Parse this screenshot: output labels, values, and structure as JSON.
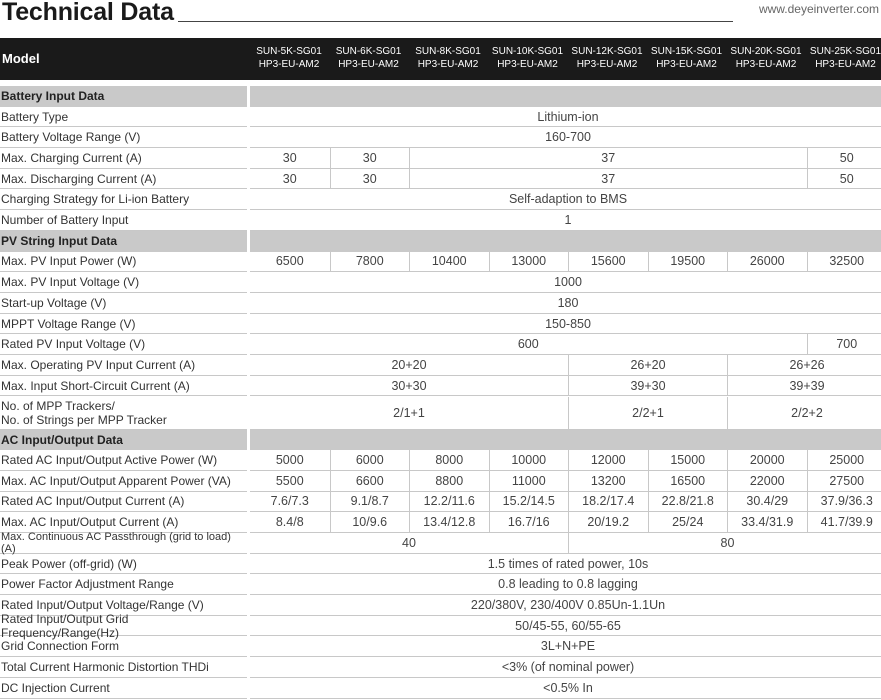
{
  "header": {
    "title": "Technical Data",
    "url": "www.deyeinverter.com",
    "model_label": "Model",
    "models": [
      [
        "SUN-5K-SG01",
        "HP3-EU-AM2"
      ],
      [
        "SUN-6K-SG01",
        "HP3-EU-AM2"
      ],
      [
        "SUN-8K-SG01",
        "HP3-EU-AM2"
      ],
      [
        "SUN-10K-SG01",
        "HP3-EU-AM2"
      ],
      [
        "SUN-12K-SG01",
        "HP3-EU-AM2"
      ],
      [
        "SUN-15K-SG01",
        "HP3-EU-AM2"
      ],
      [
        "SUN-20K-SG01",
        "HP3-EU-AM2"
      ],
      [
        "SUN-25K-SG01",
        "HP3-EU-AM2"
      ]
    ]
  },
  "rows": [
    {
      "type": "section",
      "label": "Battery Input Data"
    },
    {
      "label": "Battery Type",
      "cells": [
        {
          "v": "Lithium-ion",
          "span": 8
        }
      ]
    },
    {
      "label": "Battery Voltage Range (V)",
      "cells": [
        {
          "v": "160-700",
          "span": 8
        }
      ]
    },
    {
      "label": "Max. Charging Current (A)",
      "cells": [
        {
          "v": "30",
          "span": 1
        },
        {
          "v": "30",
          "span": 1
        },
        {
          "v": "37",
          "span": 5
        },
        {
          "v": "50",
          "span": 1
        }
      ]
    },
    {
      "label": "Max. Discharging Current (A)",
      "cells": [
        {
          "v": "30",
          "span": 1
        },
        {
          "v": "30",
          "span": 1
        },
        {
          "v": "37",
          "span": 5
        },
        {
          "v": "50",
          "span": 1
        }
      ]
    },
    {
      "label": "Charging Strategy for Li-ion Battery",
      "cells": [
        {
          "v": "Self-adaption to BMS",
          "span": 8
        }
      ]
    },
    {
      "label": "Number of Battery Input",
      "cells": [
        {
          "v": "1",
          "span": 8
        }
      ]
    },
    {
      "type": "section",
      "label": "PV String Input Data"
    },
    {
      "label": "Max. PV Input Power (W)",
      "cells": [
        {
          "v": "6500",
          "span": 1
        },
        {
          "v": "7800",
          "span": 1
        },
        {
          "v": "10400",
          "span": 1
        },
        {
          "v": "13000",
          "span": 1
        },
        {
          "v": "15600",
          "span": 1
        },
        {
          "v": "19500",
          "span": 1
        },
        {
          "v": "26000",
          "span": 1
        },
        {
          "v": "32500",
          "span": 1
        }
      ]
    },
    {
      "label": "Max. PV Input Voltage (V)",
      "cells": [
        {
          "v": "1000",
          "span": 8
        }
      ]
    },
    {
      "label": "Start-up Voltage (V)",
      "cells": [
        {
          "v": "180",
          "span": 8
        }
      ]
    },
    {
      "label": "MPPT Voltage Range (V)",
      "cells": [
        {
          "v": "150-850",
          "span": 8
        }
      ]
    },
    {
      "label": "Rated PV Input Voltage (V)",
      "cells": [
        {
          "v": "600",
          "span": 7
        },
        {
          "v": "700",
          "span": 1
        }
      ]
    },
    {
      "label": "Max. Operating PV Input Current (A)",
      "cells": [
        {
          "v": "20+20",
          "span": 4
        },
        {
          "v": "26+20",
          "span": 2
        },
        {
          "v": "26+26",
          "span": 2
        }
      ]
    },
    {
      "label": "Max. Input Short-Circuit Current (A)",
      "cells": [
        {
          "v": "30+30",
          "span": 4
        },
        {
          "v": "39+30",
          "span": 2
        },
        {
          "v": "39+39",
          "span": 2
        }
      ]
    },
    {
      "label": "No. of MPP Trackers/",
      "label2": "No. of Strings per MPP Tracker",
      "cells": [
        {
          "v": "2/1+1",
          "span": 4
        },
        {
          "v": "2/2+1",
          "span": 2
        },
        {
          "v": "2/2+2",
          "span": 2
        }
      ]
    },
    {
      "type": "section",
      "label": "AC Input/Output Data"
    },
    {
      "label": "Rated AC Input/Output Active Power (W)",
      "cells": [
        {
          "v": "5000",
          "span": 1
        },
        {
          "v": "6000",
          "span": 1
        },
        {
          "v": "8000",
          "span": 1
        },
        {
          "v": "10000",
          "span": 1
        },
        {
          "v": "12000",
          "span": 1
        },
        {
          "v": "15000",
          "span": 1
        },
        {
          "v": "20000",
          "span": 1
        },
        {
          "v": "25000",
          "span": 1
        }
      ]
    },
    {
      "label": "Max. AC Input/Output Apparent Power (VA)",
      "cells": [
        {
          "v": "5500",
          "span": 1
        },
        {
          "v": "6600",
          "span": 1
        },
        {
          "v": "8800",
          "span": 1
        },
        {
          "v": "11000",
          "span": 1
        },
        {
          "v": "13200",
          "span": 1
        },
        {
          "v": "16500",
          "span": 1
        },
        {
          "v": "22000",
          "span": 1
        },
        {
          "v": "27500",
          "span": 1
        }
      ]
    },
    {
      "label": "Rated AC Input/Output Current (A)",
      "cells": [
        {
          "v": "7.6/7.3",
          "span": 1
        },
        {
          "v": "9.1/8.7",
          "span": 1
        },
        {
          "v": "12.2/11.6",
          "span": 1
        },
        {
          "v": "15.2/14.5",
          "span": 1
        },
        {
          "v": "18.2/17.4",
          "span": 1
        },
        {
          "v": "22.8/21.8",
          "span": 1
        },
        {
          "v": "30.4/29",
          "span": 1
        },
        {
          "v": "37.9/36.3",
          "span": 1
        }
      ]
    },
    {
      "label": "Max. AC Input/Output Current (A)",
      "cells": [
        {
          "v": "8.4/8",
          "span": 1
        },
        {
          "v": "10/9.6",
          "span": 1
        },
        {
          "v": "13.4/12.8",
          "span": 1
        },
        {
          "v": "16.7/16",
          "span": 1
        },
        {
          "v": "20/19.2",
          "span": 1
        },
        {
          "v": "25/24",
          "span": 1
        },
        {
          "v": "33.4/31.9",
          "span": 1
        },
        {
          "v": "41.7/39.9",
          "span": 1
        }
      ]
    },
    {
      "label": "Max. Continuous AC Passthrough (grid to load) (A)",
      "small": true,
      "cells": [
        {
          "v": "40",
          "span": 4
        },
        {
          "v": "80",
          "span": 4
        }
      ]
    },
    {
      "label": "Peak Power (off-grid) (W)",
      "cells": [
        {
          "v": "1.5 times of rated power, 10s",
          "span": 8
        }
      ]
    },
    {
      "label": "Power Factor Adjustment Range",
      "cells": [
        {
          "v": "0.8 leading to 0.8 lagging",
          "span": 8
        }
      ]
    },
    {
      "label": "Rated Input/Output Voltage/Range (V)",
      "cells": [
        {
          "v": "220/380V, 230/400V  0.85Un-1.1Un",
          "span": 8
        }
      ]
    },
    {
      "label": "Rated Input/Output Grid Frequency/Range(Hz)",
      "cells": [
        {
          "v": "50/45-55, 60/55-65",
          "span": 8
        }
      ]
    },
    {
      "label": "Grid Connection Form",
      "cells": [
        {
          "v": "3L+N+PE",
          "span": 8
        }
      ]
    },
    {
      "label": "Total Current Harmonic Distortion THDi",
      "cells": [
        {
          "v": "<3% (of nominal power)",
          "span": 8
        }
      ]
    },
    {
      "label": "DC Injection Current",
      "cells": [
        {
          "v": "<0.5% In",
          "span": 8
        }
      ]
    }
  ]
}
